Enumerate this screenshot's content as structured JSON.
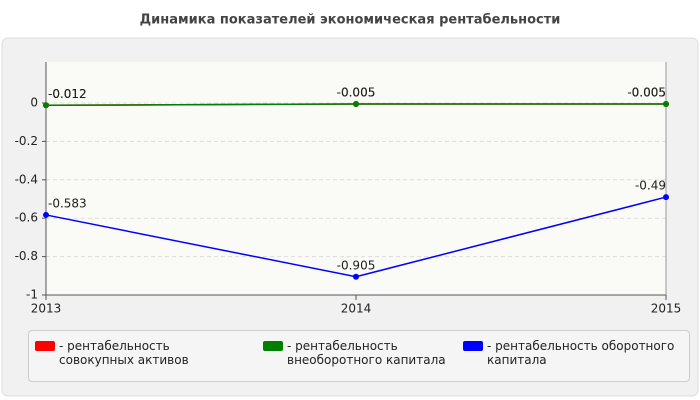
{
  "chart_data": {
    "type": "line",
    "title": "Динамика показателей экономическая рентабельности",
    "categories": [
      "2013",
      "2014",
      "2015"
    ],
    "series": [
      {
        "name": "- рентабельность совокупных активов",
        "color": "#ff0000",
        "values": [
          -0.012,
          -0.005,
          -0.005
        ]
      },
      {
        "name": "- рентабельность внеоборотного капитала",
        "color": "#008000",
        "values": [
          -0.012,
          -0.005,
          -0.005
        ]
      },
      {
        "name": "- рентабельность оборотного капитала",
        "color": "#0000ff",
        "values": [
          -0.583,
          -0.905,
          -0.49
        ]
      }
    ],
    "ylim": [
      -1,
      0.2
    ],
    "yticks": [
      0,
      -0.2,
      -0.4,
      -0.6,
      -0.8,
      -1
    ],
    "grid": true
  }
}
